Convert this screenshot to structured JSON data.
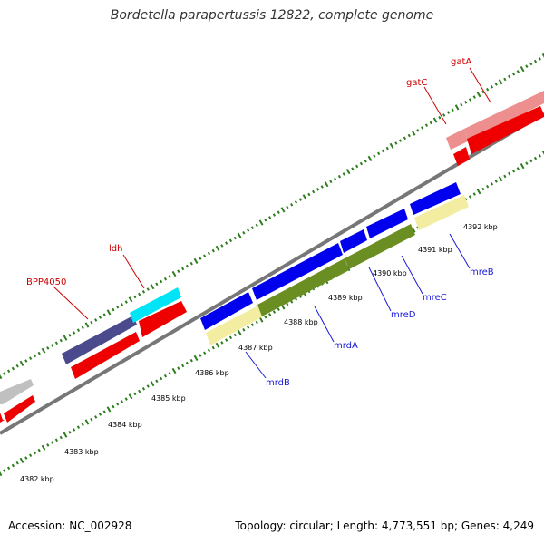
{
  "title": "Bordetella parapertussis 12822, complete genome",
  "footer": {
    "accession": "Accession: NC_002928",
    "summary": "Topology: circular; Length: 4,773,551 bp; Genes: 4,249"
  },
  "colors": {
    "backbone": "#777777",
    "tick": "#2e7d1e",
    "cds_forward": "#0000ee",
    "cds_reverse": "#ee0000",
    "label_blue": "#1a1ad9",
    "label_red": "#cc0000",
    "gene_olive": "#6b8e23",
    "gene_khaki": "#f2eda0",
    "gene_navy": "#4a4a8c",
    "gene_cyan": "#00e5f5",
    "gene_pink": "#ee8f8f",
    "gene_gray": "#c0c0c0"
  },
  "kbp_labels": [
    {
      "text": "4382 kbp"
    },
    {
      "text": "4383 kbp"
    },
    {
      "text": "4384 kbp"
    },
    {
      "text": "4385 kbp"
    },
    {
      "text": "4386 kbp"
    },
    {
      "text": "4387 kbp"
    },
    {
      "text": "4388 kbp"
    },
    {
      "text": "4389 kbp"
    },
    {
      "text": "4390 kbp"
    },
    {
      "text": "4391 kbp"
    },
    {
      "text": "4392 kbp"
    }
  ],
  "gene_labels": [
    {
      "text": "mrdB"
    },
    {
      "text": "mrdA"
    },
    {
      "text": "mreD"
    },
    {
      "text": "mreC"
    },
    {
      "text": "mreB"
    },
    {
      "text": "BPP4050"
    },
    {
      "text": "ldh"
    },
    {
      "text": "gatC"
    },
    {
      "text": "gatA"
    }
  ]
}
